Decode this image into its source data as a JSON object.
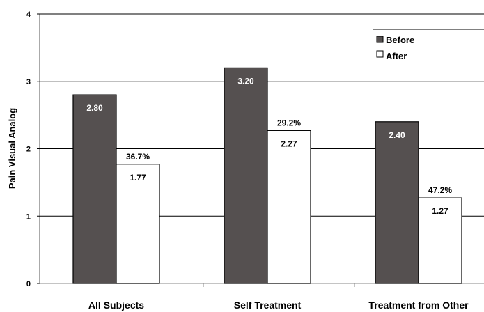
{
  "chart_data": {
    "type": "bar",
    "ylabel": "Pain Visual Analog",
    "ylim": [
      0,
      4
    ],
    "yticks": [
      "0",
      "1",
      "2",
      "3",
      "4"
    ],
    "categories": [
      "All Subjects",
      "Self Treatment",
      "Treatment from Other"
    ],
    "series": [
      {
        "name": "Before",
        "color": "#555050",
        "values": [
          2.8,
          3.2,
          2.4
        ],
        "labels": [
          "2.80",
          "3.20",
          "2.40"
        ]
      },
      {
        "name": "After",
        "color": "#ffffff",
        "values": [
          1.77,
          2.27,
          1.27
        ],
        "labels": [
          "1.77",
          "2.27",
          "1.27"
        ]
      }
    ],
    "annotations": [
      "36.7%",
      "29.2%",
      "47.2%"
    ],
    "grid": true,
    "legend": "top-right"
  }
}
